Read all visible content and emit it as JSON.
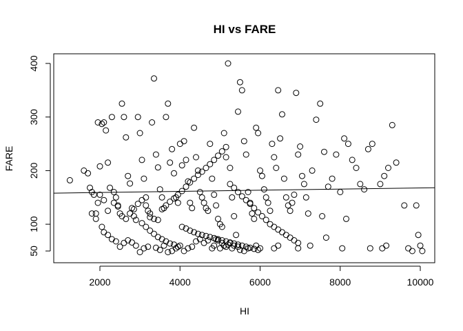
{
  "chart_data": {
    "type": "scatter",
    "title": "HI vs FARE",
    "xlabel": "HI",
    "ylabel": "FARE",
    "xlim": [
      1000,
      10250
    ],
    "ylim": [
      40,
      410
    ],
    "xticks": [
      2000,
      4000,
      6000,
      8000,
      10000
    ],
    "yticks": [
      50,
      100,
      200,
      300,
      400
    ],
    "xtick_labels": [
      "2000",
      "4000",
      "6000",
      "8000",
      "10000"
    ],
    "ytick_labels": [
      "50",
      "100",
      "200",
      "300",
      "400"
    ],
    "grid": false,
    "legend": "none",
    "regression_line": {
      "x": [
        1000,
        10250
      ],
      "y": [
        158,
        168
      ]
    },
    "points": [
      [
        1250,
        182
      ],
      [
        1600,
        200
      ],
      [
        1700,
        195
      ],
      [
        1750,
        168
      ],
      [
        1800,
        160
      ],
      [
        1850,
        155
      ],
      [
        1900,
        120
      ],
      [
        1950,
        290
      ],
      [
        2000,
        208
      ],
      [
        2050,
        287
      ],
      [
        2100,
        290
      ],
      [
        2150,
        275
      ],
      [
        2200,
        215
      ],
      [
        2250,
        168
      ],
      [
        2300,
        300
      ],
      [
        2350,
        160
      ],
      [
        2400,
        150
      ],
      [
        2450,
        133
      ],
      [
        2500,
        120
      ],
      [
        2550,
        325
      ],
      [
        2600,
        300
      ],
      [
        2650,
        262
      ],
      [
        2700,
        190
      ],
      [
        2750,
        176
      ],
      [
        2800,
        130
      ],
      [
        2850,
        115
      ],
      [
        2900,
        108
      ],
      [
        2950,
        300
      ],
      [
        3000,
        270
      ],
      [
        3050,
        220
      ],
      [
        3100,
        185
      ],
      [
        3150,
        150
      ],
      [
        3200,
        125
      ],
      [
        3250,
        113
      ],
      [
        3300,
        290
      ],
      [
        3350,
        372
      ],
      [
        3400,
        230
      ],
      [
        3450,
        206
      ],
      [
        3500,
        165
      ],
      [
        3550,
        150
      ],
      [
        3600,
        130
      ],
      [
        3650,
        300
      ],
      [
        3700,
        325
      ],
      [
        3750,
        215
      ],
      [
        3800,
        240
      ],
      [
        3850,
        195
      ],
      [
        3900,
        150
      ],
      [
        3950,
        140
      ],
      [
        4000,
        250
      ],
      [
        4050,
        210
      ],
      [
        4100,
        255
      ],
      [
        4150,
        220
      ],
      [
        4200,
        180
      ],
      [
        4250,
        140
      ],
      [
        4300,
        130
      ],
      [
        4350,
        280
      ],
      [
        4400,
        225
      ],
      [
        4450,
        200
      ],
      [
        4500,
        160
      ],
      [
        4550,
        150
      ],
      [
        4600,
        140
      ],
      [
        4650,
        130
      ],
      [
        4700,
        125
      ],
      [
        4750,
        250
      ],
      [
        4800,
        185
      ],
      [
        4850,
        155
      ],
      [
        4900,
        135
      ],
      [
        4950,
        110
      ],
      [
        5000,
        100
      ],
      [
        5050,
        95
      ],
      [
        5100,
        270
      ],
      [
        5150,
        225
      ],
      [
        5200,
        400
      ],
      [
        5250,
        205
      ],
      [
        5300,
        150
      ],
      [
        5350,
        115
      ],
      [
        5400,
        80
      ],
      [
        5450,
        310
      ],
      [
        5500,
        365
      ],
      [
        5550,
        350
      ],
      [
        5600,
        255
      ],
      [
        5650,
        230
      ],
      [
        5700,
        160
      ],
      [
        5750,
        140
      ],
      [
        5800,
        120
      ],
      [
        5850,
        110
      ],
      [
        5900,
        280
      ],
      [
        5950,
        270
      ],
      [
        6000,
        200
      ],
      [
        6050,
        190
      ],
      [
        6100,
        165
      ],
      [
        6150,
        150
      ],
      [
        6200,
        140
      ],
      [
        6250,
        125
      ],
      [
        6300,
        250
      ],
      [
        6350,
        225
      ],
      [
        6400,
        205
      ],
      [
        6450,
        350
      ],
      [
        6500,
        260
      ],
      [
        6550,
        305
      ],
      [
        6600,
        185
      ],
      [
        6650,
        150
      ],
      [
        6700,
        135
      ],
      [
        6750,
        125
      ],
      [
        6800,
        140
      ],
      [
        6850,
        155
      ],
      [
        6900,
        345
      ],
      [
        6950,
        230
      ],
      [
        7000,
        245
      ],
      [
        7050,
        190
      ],
      [
        7100,
        175
      ],
      [
        7150,
        150
      ],
      [
        7200,
        120
      ],
      [
        7300,
        200
      ],
      [
        7400,
        295
      ],
      [
        7500,
        325
      ],
      [
        7550,
        115
      ],
      [
        7600,
        235
      ],
      [
        7650,
        75
      ],
      [
        7700,
        170
      ],
      [
        7800,
        185
      ],
      [
        7900,
        230
      ],
      [
        8000,
        160
      ],
      [
        8100,
        260
      ],
      [
        8200,
        250
      ],
      [
        8300,
        220
      ],
      [
        8400,
        205
      ],
      [
        8500,
        175
      ],
      [
        8600,
        165
      ],
      [
        8700,
        240
      ],
      [
        8800,
        250
      ],
      [
        9000,
        175
      ],
      [
        9100,
        190
      ],
      [
        9200,
        205
      ],
      [
        9300,
        285
      ],
      [
        9400,
        215
      ],
      [
        9600,
        135
      ],
      [
        9700,
        55
      ],
      [
        9800,
        50
      ],
      [
        9900,
        135
      ],
      [
        9950,
        80
      ],
      [
        10000,
        60
      ],
      [
        10050,
        50
      ],
      [
        8150,
        110
      ],
      [
        8050,
        55
      ],
      [
        8750,
        55
      ],
      [
        9050,
        55
      ],
      [
        9150,
        60
      ],
      [
        7250,
        60
      ],
      [
        6950,
        55
      ],
      [
        6450,
        60
      ],
      [
        6350,
        55
      ],
      [
        6000,
        55
      ],
      [
        5900,
        60
      ],
      [
        5700,
        55
      ],
      [
        5600,
        50
      ],
      [
        5500,
        52
      ],
      [
        5450,
        58
      ],
      [
        5350,
        60
      ],
      [
        5300,
        55
      ],
      [
        5250,
        65
      ],
      [
        5200,
        62
      ],
      [
        5150,
        58
      ],
      [
        5100,
        60
      ],
      [
        5050,
        65
      ],
      [
        5000,
        55
      ],
      [
        4950,
        70
      ],
      [
        4900,
        72
      ],
      [
        4850,
        60
      ],
      [
        4800,
        55
      ],
      [
        4700,
        70
      ],
      [
        4600,
        65
      ],
      [
        4500,
        72
      ],
      [
        4400,
        68
      ],
      [
        4300,
        58
      ],
      [
        4200,
        55
      ],
      [
        4100,
        50
      ],
      [
        4000,
        60
      ],
      [
        3900,
        55
      ],
      [
        3800,
        50
      ],
      [
        3700,
        48
      ],
      [
        3600,
        60
      ],
      [
        3500,
        52
      ],
      [
        3400,
        56
      ],
      [
        3200,
        58
      ],
      [
        3100,
        55
      ],
      [
        3000,
        48
      ],
      [
        2900,
        60
      ],
      [
        2800,
        66
      ],
      [
        2700,
        70
      ],
      [
        2600,
        65
      ],
      [
        2500,
        58
      ],
      [
        2400,
        68
      ],
      [
        2300,
        72
      ],
      [
        2200,
        80
      ],
      [
        2100,
        85
      ],
      [
        2050,
        95
      ],
      [
        1900,
        110
      ],
      [
        1800,
        120
      ],
      [
        1950,
        140
      ],
      [
        2000,
        155
      ],
      [
        2100,
        145
      ],
      [
        2200,
        125
      ],
      [
        2350,
        140
      ],
      [
        2450,
        135
      ],
      [
        2550,
        115
      ],
      [
        2650,
        110
      ],
      [
        2750,
        120
      ],
      [
        2850,
        128
      ],
      [
        2950,
        138
      ],
      [
        3050,
        145
      ],
      [
        3150,
        135
      ],
      [
        3250,
        120
      ],
      [
        3350,
        110
      ],
      [
        3450,
        108
      ],
      [
        3550,
        128
      ],
      [
        3650,
        135
      ],
      [
        3750,
        142
      ],
      [
        3850,
        148
      ],
      [
        3950,
        155
      ],
      [
        4050,
        162
      ],
      [
        4150,
        170
      ],
      [
        4250,
        178
      ],
      [
        4350,
        185
      ],
      [
        4450,
        192
      ],
      [
        4550,
        198
      ],
      [
        4650,
        205
      ],
      [
        4750,
        212
      ],
      [
        4850,
        220
      ],
      [
        4950,
        228
      ],
      [
        5050,
        236
      ],
      [
        5150,
        244
      ],
      [
        5250,
        175
      ],
      [
        5350,
        168
      ],
      [
        5450,
        160
      ],
      [
        5550,
        152
      ],
      [
        5650,
        145
      ],
      [
        5750,
        138
      ],
      [
        5850,
        130
      ],
      [
        5950,
        122
      ],
      [
        6050,
        115
      ],
      [
        6150,
        108
      ],
      [
        6250,
        100
      ],
      [
        6350,
        95
      ],
      [
        6450,
        90
      ],
      [
        6550,
        85
      ],
      [
        6650,
        80
      ],
      [
        6750,
        75
      ],
      [
        6850,
        70
      ],
      [
        6950,
        65
      ],
      [
        3050,
        102
      ],
      [
        3150,
        95
      ],
      [
        3250,
        88
      ],
      [
        3350,
        82
      ],
      [
        3450,
        76
      ],
      [
        3550,
        72
      ],
      [
        3650,
        68
      ],
      [
        3750,
        64
      ],
      [
        3850,
        62
      ],
      [
        3950,
        58
      ],
      [
        4050,
        95
      ],
      [
        4150,
        92
      ],
      [
        4250,
        88
      ],
      [
        4350,
        85
      ],
      [
        4450,
        82
      ],
      [
        4550,
        80
      ],
      [
        4650,
        78
      ],
      [
        4750,
        76
      ],
      [
        4850,
        74
      ],
      [
        4950,
        72
      ],
      [
        5050,
        70
      ],
      [
        5150,
        68
      ],
      [
        5250,
        66
      ],
      [
        5350,
        64
      ],
      [
        5450,
        62
      ],
      [
        5550,
        60
      ],
      [
        5650,
        58
      ],
      [
        5750,
        56
      ],
      [
        5850,
        54
      ],
      [
        5950,
        52
      ]
    ]
  }
}
